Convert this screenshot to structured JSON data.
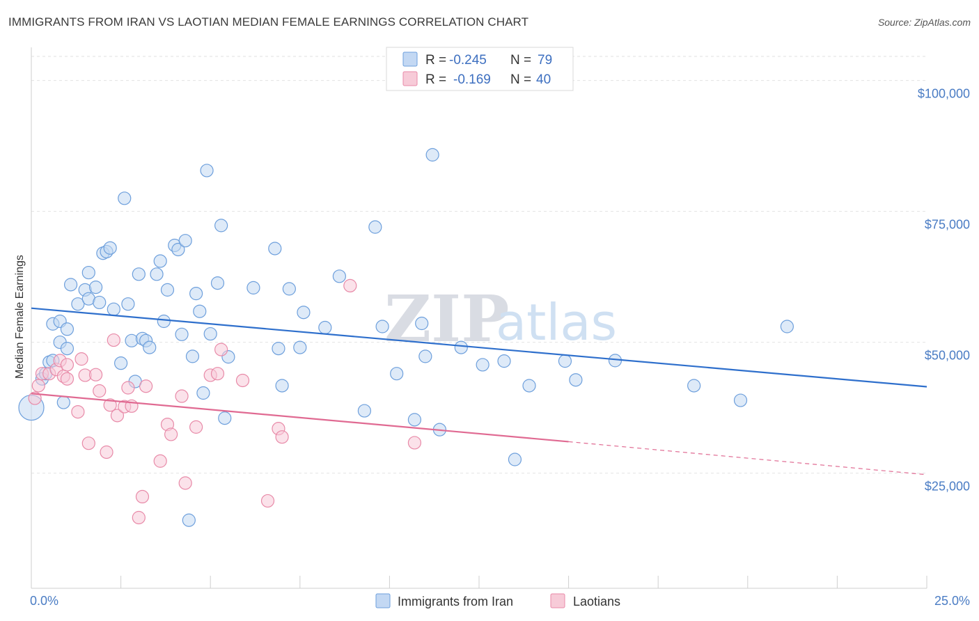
{
  "header": {
    "title": "IMMIGRANTS FROM IRAN VS LAOTIAN MEDIAN FEMALE EARNINGS CORRELATION CHART",
    "source": "Source: ZipAtlas.com"
  },
  "watermark": {
    "zip": "ZIP",
    "atlas": "atlas"
  },
  "legend_top": {
    "rows": [
      {
        "r_label": "R =",
        "r_value": "-0.245",
        "n_label": "N =",
        "n_value": "79",
        "color": "#a7c6ee"
      },
      {
        "r_label": "R =",
        "r_value": "-0.169",
        "n_label": "N =",
        "n_value": "40",
        "color": "#f6b6c8"
      }
    ]
  },
  "legend_bottom": {
    "items": [
      {
        "label": "Immigrants from Iran",
        "color": "#a7c6ee"
      },
      {
        "label": "Laotians",
        "color": "#f6b6c8"
      }
    ]
  },
  "chart_data": {
    "type": "scatter",
    "title": "IMMIGRANTS FROM IRAN VS LAOTIAN MEDIAN FEMALE EARNINGS CORRELATION CHART",
    "xlabel": "",
    "ylabel": "Median Female Earnings",
    "xlim": [
      0,
      25
    ],
    "ylim": [
      3000,
      105000
    ],
    "x_tick_labels": {
      "min": "0.0%",
      "max": "25.0%"
    },
    "y_ticks": [
      {
        "value": 25000,
        "label": "$25,000"
      },
      {
        "value": 50000,
        "label": "$50,000"
      },
      {
        "value": 75000,
        "label": "$75,000"
      },
      {
        "value": 100000,
        "label": "$100,000"
      }
    ],
    "grid": true,
    "series": [
      {
        "name": "Immigrants from Iran",
        "color": "#6d9fdc",
        "fill": "#c3d8f3",
        "trend": {
          "x": [
            0,
            25
          ],
          "y": [
            56500,
            41500
          ],
          "color": "#2e6fcc"
        },
        "points": [
          [
            0.0,
            37500
          ],
          [
            0.3,
            43000
          ],
          [
            0.4,
            44000
          ],
          [
            0.5,
            46200
          ],
          [
            0.6,
            46500
          ],
          [
            0.6,
            53500
          ],
          [
            0.8,
            50000
          ],
          [
            0.8,
            54000
          ],
          [
            0.9,
            38500
          ],
          [
            1.0,
            48800
          ],
          [
            1.0,
            52500
          ],
          [
            1.1,
            61000
          ],
          [
            1.3,
            57300
          ],
          [
            1.5,
            60000
          ],
          [
            1.6,
            58300
          ],
          [
            1.6,
            63300
          ],
          [
            1.8,
            60500
          ],
          [
            1.9,
            57600
          ],
          [
            2.0,
            67000
          ],
          [
            2.1,
            67300
          ],
          [
            2.2,
            68000
          ],
          [
            2.3,
            56300
          ],
          [
            2.5,
            46000
          ],
          [
            2.6,
            77500
          ],
          [
            2.7,
            57300
          ],
          [
            2.8,
            50300
          ],
          [
            2.9,
            42500
          ],
          [
            3.0,
            63000
          ],
          [
            3.1,
            50700
          ],
          [
            3.2,
            50300
          ],
          [
            3.3,
            49000
          ],
          [
            3.5,
            63000
          ],
          [
            3.6,
            65500
          ],
          [
            3.7,
            54000
          ],
          [
            3.8,
            60000
          ],
          [
            4.0,
            68500
          ],
          [
            4.1,
            67700
          ],
          [
            4.2,
            51500
          ],
          [
            4.3,
            69400
          ],
          [
            4.5,
            47300
          ],
          [
            4.6,
            59300
          ],
          [
            4.7,
            55900
          ],
          [
            4.8,
            40300
          ],
          [
            4.9,
            82800
          ],
          [
            5.0,
            51600
          ],
          [
            5.2,
            61300
          ],
          [
            5.3,
            72300
          ],
          [
            5.4,
            35500
          ],
          [
            5.5,
            47200
          ],
          [
            6.2,
            60400
          ],
          [
            6.8,
            67900
          ],
          [
            6.9,
            48800
          ],
          [
            7.0,
            41700
          ],
          [
            7.2,
            60200
          ],
          [
            7.5,
            49000
          ],
          [
            7.6,
            55700
          ],
          [
            8.2,
            52800
          ],
          [
            8.6,
            62600
          ],
          [
            9.3,
            36900
          ],
          [
            9.6,
            72000
          ],
          [
            9.8,
            53000
          ],
          [
            10.2,
            44000
          ],
          [
            10.7,
            35200
          ],
          [
            10.9,
            53600
          ],
          [
            11.0,
            47300
          ],
          [
            11.2,
            85800
          ],
          [
            11.4,
            33300
          ],
          [
            12.0,
            49000
          ],
          [
            12.6,
            45700
          ],
          [
            13.2,
            46400
          ],
          [
            13.5,
            27600
          ],
          [
            13.9,
            41700
          ],
          [
            14.9,
            46400
          ],
          [
            15.2,
            42800
          ],
          [
            16.3,
            46500
          ],
          [
            18.5,
            41700
          ],
          [
            19.8,
            38900
          ],
          [
            21.1,
            53000
          ],
          [
            4.4,
            16000
          ]
        ]
      },
      {
        "name": "Laotians",
        "color": "#e88aa8",
        "fill": "#f7cbd8",
        "trend": {
          "x": [
            0,
            15
          ],
          "y": [
            40200,
            31000
          ],
          "color": "#e06a92"
        },
        "trend_dashed": {
          "x": [
            15,
            25
          ],
          "y": [
            31000,
            24700
          ]
        },
        "points": [
          [
            0.1,
            39300
          ],
          [
            0.2,
            41700
          ],
          [
            0.3,
            44000
          ],
          [
            0.5,
            44000
          ],
          [
            0.7,
            44800
          ],
          [
            0.8,
            46500
          ],
          [
            0.9,
            43500
          ],
          [
            1.0,
            43000
          ],
          [
            1.0,
            45700
          ],
          [
            1.3,
            36700
          ],
          [
            1.4,
            46800
          ],
          [
            1.5,
            43700
          ],
          [
            1.6,
            30700
          ],
          [
            1.8,
            43800
          ],
          [
            1.9,
            40700
          ],
          [
            2.1,
            29000
          ],
          [
            2.2,
            38000
          ],
          [
            2.3,
            50400
          ],
          [
            2.4,
            36000
          ],
          [
            2.6,
            37700
          ],
          [
            2.7,
            41300
          ],
          [
            2.8,
            37800
          ],
          [
            3.0,
            16500
          ],
          [
            3.1,
            20500
          ],
          [
            3.2,
            41600
          ],
          [
            3.6,
            27300
          ],
          [
            3.8,
            34300
          ],
          [
            3.9,
            32400
          ],
          [
            4.2,
            39700
          ],
          [
            4.3,
            23100
          ],
          [
            4.6,
            33800
          ],
          [
            5.0,
            43700
          ],
          [
            5.2,
            44000
          ],
          [
            5.3,
            48600
          ],
          [
            5.9,
            42700
          ],
          [
            6.6,
            19700
          ],
          [
            6.9,
            33500
          ],
          [
            7.0,
            31900
          ],
          [
            8.9,
            60800
          ],
          [
            10.7,
            30800
          ]
        ]
      }
    ]
  }
}
